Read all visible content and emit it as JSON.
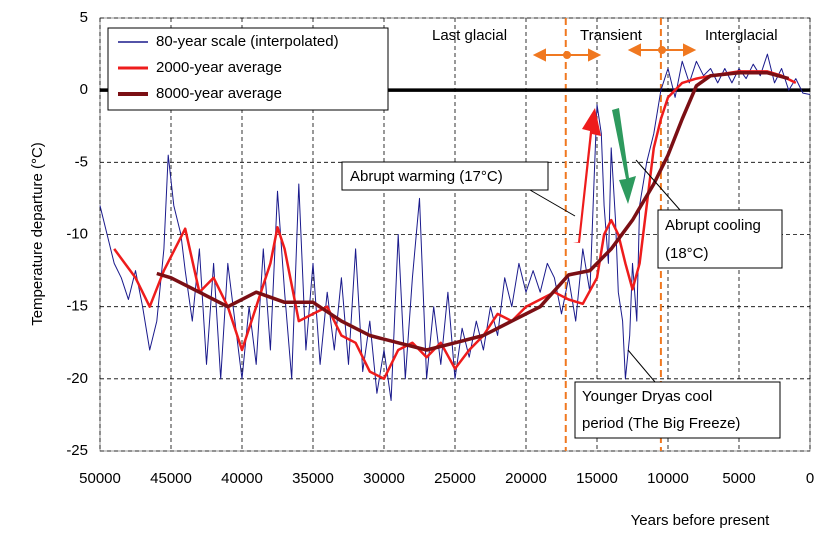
{
  "chart_data": {
    "type": "line",
    "ylabel": "Temperature departure (°C)",
    "xlabel": "Years before present",
    "xlim": [
      50000,
      0
    ],
    "xticks": [
      50000,
      45000,
      40000,
      35000,
      30000,
      25000,
      20000,
      15000,
      10000,
      5000,
      0
    ],
    "ylim": [
      -25,
      5
    ],
    "yticks": [
      5,
      0,
      -5,
      -10,
      -15,
      -20,
      -25
    ],
    "grid": true,
    "hline": 0,
    "vlines": [
      17200,
      10500
    ],
    "annotations": [
      "Last glacial",
      "Transient",
      "Interglacial",
      "Abrupt warming (17°C)",
      "Abrupt cooling",
      "(18°C)",
      "Younger Dryas cool",
      "period (The Big Freeze)"
    ],
    "series": [
      {
        "name": "80-year scale (interpolated)",
        "color": "#1a1a8c",
        "x": [
          50000,
          49500,
          49000,
          48500,
          48000,
          47500,
          47000,
          46500,
          46000,
          45500,
          45200,
          44800,
          44300,
          44000,
          43500,
          43000,
          42500,
          42000,
          41500,
          41000,
          40500,
          40000,
          39500,
          39000,
          38500,
          38000,
          37500,
          37000,
          36500,
          36000,
          35500,
          35000,
          34500,
          34000,
          33500,
          33000,
          32500,
          32000,
          31500,
          31000,
          30500,
          30000,
          29500,
          29000,
          28500,
          28000,
          27500,
          27000,
          26500,
          26000,
          25500,
          25000,
          24500,
          24000,
          23500,
          23000,
          22500,
          22000,
          21500,
          21000,
          20500,
          20000,
          19500,
          19000,
          18500,
          18000,
          17500,
          17000,
          16500,
          16000,
          15500,
          15200,
          15000,
          14700,
          14500,
          14200,
          14000,
          13700,
          13500,
          13200,
          13000,
          12700,
          12500,
          12200,
          12000,
          11500,
          11000,
          10500,
          10000,
          9500,
          9000,
          8500,
          8000,
          7500,
          7000,
          6500,
          6000,
          5500,
          5000,
          4500,
          4000,
          3500,
          3000,
          2500,
          2000,
          1500,
          1000,
          500,
          0
        ],
        "values": [
          -8,
          -10,
          -12,
          -13,
          -14.5,
          -12.5,
          -15,
          -18,
          -16,
          -11,
          -4.5,
          -8,
          -10,
          -12.5,
          -16,
          -11,
          -19,
          -12,
          -20,
          -12,
          -16,
          -20,
          -15,
          -19,
          -11,
          -18,
          -7,
          -14,
          -20,
          -6.5,
          -18,
          -12,
          -19,
          -14,
          -18,
          -13,
          -19,
          -11,
          -19.5,
          -16,
          -21,
          -18,
          -21.5,
          -10,
          -20,
          -13,
          -7.5,
          -20,
          -15,
          -19,
          -14,
          -20,
          -16.5,
          -18.5,
          -16,
          -18,
          -15,
          -17,
          -13,
          -15,
          -12,
          -14,
          -12.5,
          -14,
          -12,
          -13,
          -15.5,
          -13,
          -16,
          -11,
          -14,
          -6,
          -1,
          -3,
          -8,
          -12,
          -4,
          -9,
          -14,
          -16,
          -20,
          -17,
          -12,
          -16,
          -8,
          -5,
          -3,
          0,
          1.5,
          -0.5,
          2,
          0.5,
          2,
          1,
          1.5,
          0.5,
          1.5,
          0.5,
          1.5,
          0.8,
          1.8,
          1,
          2.5,
          0.5,
          1.5,
          0,
          0.8,
          -0.2,
          -0.3
        ]
      },
      {
        "name": "2000-year average",
        "color": "#ee1c1c",
        "x": [
          49000,
          47500,
          46500,
          45500,
          44000,
          43000,
          42000,
          41000,
          40000,
          39000,
          38000,
          37500,
          37000,
          36000,
          35000,
          34000,
          33000,
          32000,
          31000,
          30000,
          29000,
          28000,
          27000,
          26000,
          25000,
          24000,
          23000,
          22000,
          21000,
          20000,
          19000,
          18000,
          17000,
          16000,
          15000,
          14500,
          14000,
          13500,
          13000,
          12500,
          12000,
          11500,
          11000,
          10500,
          10000,
          9000,
          8000,
          7000,
          5000,
          3000,
          2000,
          1000
        ],
        "values": [
          -11,
          -13,
          -15,
          -12.5,
          -9.6,
          -14,
          -13,
          -15,
          -18,
          -15,
          -12,
          -9.5,
          -11,
          -16,
          -15.5,
          -15,
          -17,
          -17.5,
          -19.5,
          -20,
          -18,
          -17.5,
          -18.5,
          -17.5,
          -19.3,
          -18,
          -17,
          -15.5,
          -16,
          -15,
          -14.5,
          -14,
          -14.5,
          -14.8,
          -13,
          -10,
          -9,
          -10,
          -12,
          -13.8,
          -12,
          -8,
          -4,
          -2,
          -0.5,
          0.5,
          0.8,
          1,
          1.3,
          1.3,
          1,
          0.5
        ]
      },
      {
        "name": "8000-year average",
        "color": "#7b0f14",
        "x": [
          46000,
          45000,
          43000,
          41000,
          39000,
          37000,
          35000,
          33000,
          31000,
          29000,
          27000,
          25000,
          23000,
          21000,
          19000,
          17000,
          15500,
          14000,
          12500,
          11000,
          10000,
          9000,
          8000,
          7000,
          5000,
          3000,
          1500
        ],
        "values": [
          -12.7,
          -13,
          -14,
          -15,
          -14,
          -14.7,
          -14.7,
          -16,
          -17,
          -17.5,
          -18,
          -17.5,
          -17,
          -16,
          -15,
          -12.8,
          -12.5,
          -11,
          -9,
          -6.5,
          -4.5,
          -2,
          0.3,
          1,
          1.2,
          1.2,
          0.8
        ]
      }
    ]
  }
}
